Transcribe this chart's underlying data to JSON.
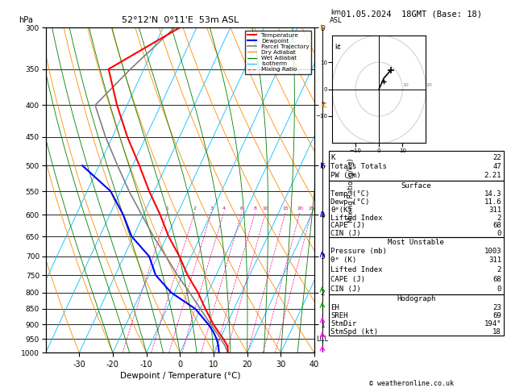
{
  "title_left": "52°12'N  0°11'E  53m ASL",
  "title_right": "01.05.2024  18GMT (Base: 18)",
  "xlabel": "Dewpoint / Temperature (°C)",
  "ylabel_left": "hPa",
  "xmin": -40,
  "xmax": 40,
  "dry_adiabat_color": "#FF8C00",
  "wet_adiabat_color": "#008000",
  "isotherm_color": "#00BFFF",
  "mixing_ratio_color": "#FF1493",
  "temp_color": "#FF0000",
  "dewpoint_color": "#0000FF",
  "parcel_color": "#808080",
  "temperature_profile": {
    "pressure": [
      1000,
      975,
      950,
      925,
      900,
      850,
      800,
      750,
      700,
      650,
      600,
      550,
      500,
      450,
      400,
      350,
      300
    ],
    "temp": [
      14.3,
      13.2,
      11.0,
      8.5,
      6.0,
      1.5,
      -3.0,
      -8.5,
      -13.5,
      -19.5,
      -25.0,
      -31.5,
      -38.0,
      -45.5,
      -53.0,
      -60.5,
      -45.0
    ]
  },
  "dewpoint_profile": {
    "pressure": [
      1000,
      975,
      950,
      925,
      900,
      850,
      800,
      750,
      700,
      650,
      600,
      550,
      500
    ],
    "temp": [
      11.6,
      10.5,
      9.0,
      7.0,
      4.5,
      -1.5,
      -11.0,
      -18.0,
      -22.5,
      -30.5,
      -36.0,
      -43.0,
      -55.0
    ]
  },
  "parcel_profile": {
    "pressure": [
      1000,
      975,
      950,
      925,
      900,
      850,
      800,
      750,
      700,
      650,
      600,
      550,
      500,
      450,
      400,
      350,
      300
    ],
    "temp": [
      14.3,
      12.5,
      10.2,
      7.8,
      5.2,
      0.0,
      -5.5,
      -11.5,
      -17.5,
      -24.0,
      -30.5,
      -37.5,
      -44.5,
      -52.0,
      -59.5,
      -54.0,
      -46.5
    ]
  },
  "mixing_ratio_values": [
    1,
    2,
    3,
    4,
    6,
    8,
    10,
    15,
    20,
    25
  ],
  "lcl_pressure": 950,
  "wind_pressures": [
    1000,
    950,
    900,
    850,
    800,
    700,
    600,
    500,
    400,
    300
  ],
  "wind_speeds": [
    5,
    8,
    10,
    12,
    15,
    18,
    20,
    25,
    30,
    35
  ],
  "wind_dirs": [
    180,
    185,
    190,
    200,
    210,
    220,
    230,
    250,
    270,
    290
  ],
  "info_K": 22,
  "info_TT": 47,
  "info_PW": "2.21",
  "surface_temp": "14.3",
  "surface_dewp": "11.6",
  "surface_theta_e": 311,
  "surface_li": 2,
  "surface_cape": 68,
  "surface_cin": 0,
  "mu_pressure": 1003,
  "mu_theta_e": 311,
  "mu_li": 2,
  "mu_cape": 68,
  "mu_cin": 0,
  "hodo_EH": 23,
  "hodo_SREH": 69,
  "hodo_StmDir": "194°",
  "hodo_StmSpd": 18,
  "copyright": "© weatheronline.co.uk",
  "skew_factor": 45.0
}
